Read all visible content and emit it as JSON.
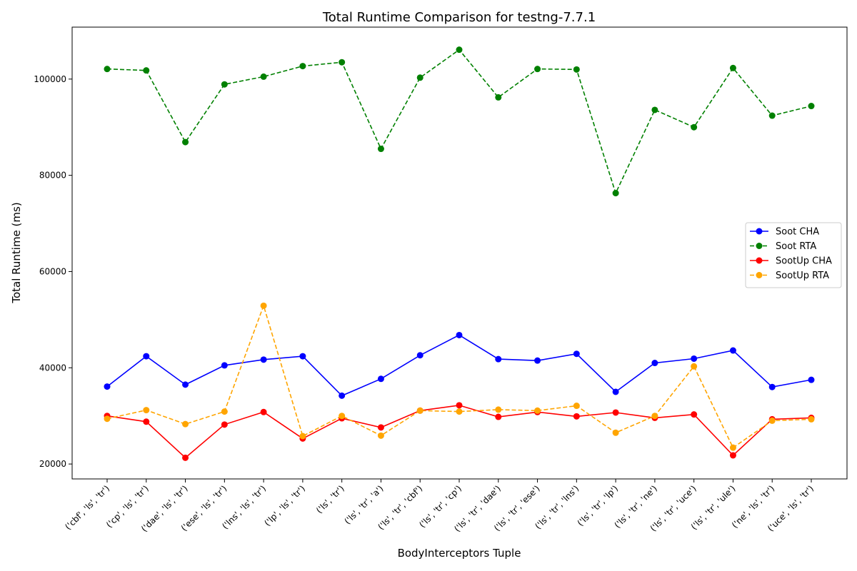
{
  "chart_data": {
    "type": "line",
    "title": "Total Runtime Comparison for testng-7.7.1",
    "xlabel": "BodyInterceptors Tuple",
    "ylabel": "Total Runtime (ms)",
    "ylim": [
      16900,
      110800
    ],
    "yticks": [
      20000,
      40000,
      60000,
      80000,
      100000
    ],
    "grid": false,
    "legend_position": "center-right",
    "categories": [
      "('cbf', 'ls', 'tr')",
      "('cp', 'ls', 'tr')",
      "('dae', 'ls', 'tr')",
      "('ese', 'ls', 'tr')",
      "('lns', 'ls', 'tr')",
      "('lp', 'ls', 'tr')",
      "('ls', 'tr')",
      "('ls', 'tr', 'a')",
      "('ls', 'tr', 'cbf')",
      "('ls', 'tr', 'cp')",
      "('ls', 'tr', 'dae')",
      "('ls', 'tr', 'ese')",
      "('ls', 'tr', 'lns')",
      "('ls', 'tr', 'lp')",
      "('ls', 'tr', 'ne')",
      "('ls', 'tr', 'uce')",
      "('ls', 'tr', 'ule')",
      "('ne', 'ls', 'tr')",
      "('uce', 'ls', 'tr')"
    ],
    "series": [
      {
        "name": "Soot CHA",
        "color": "#0000ff",
        "line_style": "solid",
        "values": [
          36100,
          42400,
          36500,
          40500,
          41700,
          42400,
          34200,
          37700,
          42600,
          46800,
          41800,
          41500,
          42900,
          35000,
          41000,
          41900,
          43600,
          36000,
          37500
        ]
      },
      {
        "name": "Soot RTA",
        "color": "#008000",
        "line_style": "dashed",
        "values": [
          102100,
          101800,
          86900,
          98900,
          100500,
          102700,
          103500,
          85500,
          100300,
          106100,
          96200,
          102100,
          102000,
          76300,
          93600,
          90000,
          102300,
          92400,
          94400
        ]
      },
      {
        "name": "SootUp CHA",
        "color": "#ff0000",
        "line_style": "solid",
        "values": [
          30000,
          28800,
          21300,
          28200,
          30800,
          25300,
          29500,
          27600,
          31100,
          32200,
          29800,
          30800,
          29900,
          30700,
          29600,
          30300,
          21800,
          29300,
          29600
        ]
      },
      {
        "name": "SootUp RTA",
        "color": "#ffa500",
        "line_style": "dashed",
        "values": [
          29400,
          31200,
          28300,
          30900,
          52900,
          25800,
          30000,
          25900,
          31100,
          30900,
          31300,
          31100,
          32100,
          26500,
          30000,
          40300,
          23400,
          29000,
          29300
        ]
      }
    ]
  }
}
